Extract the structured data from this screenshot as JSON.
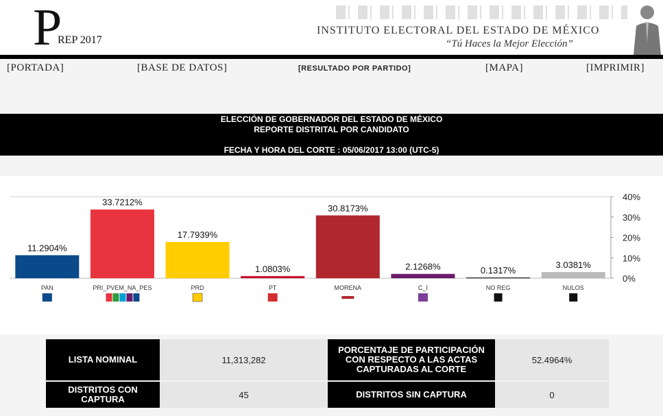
{
  "header": {
    "logo_letter": "P",
    "logo_sub": "REP 2017",
    "institute": "INSTITUTO ELECTORAL DEL ESTADO DE MÉXICO",
    "slogan": "“Tú Haces la Mejor Elección”"
  },
  "nav": {
    "portada": "[PORTADA]",
    "base_datos": "[BASE DE DATOS]",
    "resultado_partido": "[RESULTADO POR PARTIDO]",
    "mapa": "[MAPA]",
    "imprimir": "[IMPRIMIR]"
  },
  "banner": {
    "line1": "ELECCIÓN DE GOBERNADOR DEL ESTADO DE MÉXICO",
    "line2": "REPORTE DISTRITAL POR CANDIDATO",
    "line3": "FECHA Y HORA DEL CORTE : 05/06/2017 13:00 (UTC-5)"
  },
  "chart_data": {
    "type": "bar",
    "categories": [
      "PAN",
      "PRI_PVEM_NA_PES",
      "PRD",
      "PT",
      "MORENA",
      "C_I",
      "NO REG",
      "NULOS"
    ],
    "values": [
      11.2904,
      33.7212,
      17.7939,
      1.0803,
      30.8173,
      2.1268,
      0.1317,
      3.0381
    ],
    "value_labels": [
      "11.2904%",
      "33.7212%",
      "17.7939%",
      "1.0803%",
      "30.8173%",
      "2.1268%",
      "0.1317%",
      "3.0381%"
    ],
    "colors": [
      "#0a4a8a",
      "#e8343f",
      "#ffcc00",
      "#c8102e",
      "#b0282e",
      "#6a1b6a",
      "#000000",
      "#bbbbbb"
    ],
    "y_ticks": [
      "0%",
      "10%",
      "20%",
      "30%",
      "40%"
    ],
    "ylim": [
      0,
      40
    ],
    "y_axis_side": "right",
    "grid": false,
    "logo_icons": [
      "pan-logo-icon",
      "coalition-logos-icon",
      "prd-logo-icon",
      "pt-logo-icon",
      "morena-logo-icon",
      "ci-logo-icon",
      "no-reg-icon",
      "nulos-icon"
    ]
  },
  "stats": {
    "lista_nominal_label": "LISTA NOMINAL",
    "lista_nominal_value": "11,313,282",
    "participacion_label": "PORCENTAJE DE PARTICIPACIÓN CON RESPECTO A LAS ACTAS CAPTURADAS AL CORTE",
    "participacion_value": "52.4964%",
    "distritos_con_label": "DISTRITOS CON CAPTURA",
    "distritos_con_value": "45",
    "distritos_sin_label": "DISTRITOS SIN CAPTURA",
    "distritos_sin_value": "0"
  }
}
